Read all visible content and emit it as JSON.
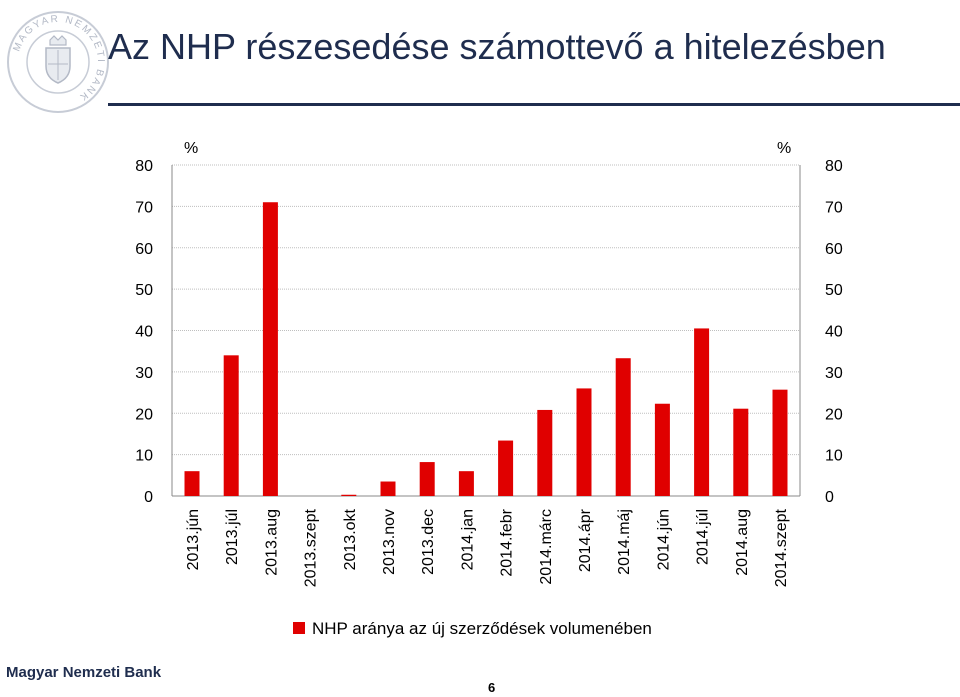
{
  "header": {
    "title": "Az NHP részesedése számottevő a hitelezésben"
  },
  "logo": {
    "text": "MAGYAR NEMZETI BANK",
    "icon": "mnb-seal-icon"
  },
  "footer": {
    "bank_name": "Magyar Nemzeti Bank",
    "page_number": "6"
  },
  "colors": {
    "bar": "#e00000",
    "title": "#1f2d4e"
  },
  "chart_data": {
    "type": "bar",
    "categories": [
      "2013.jún",
      "2013.júl",
      "2013.aug",
      "2013.szept",
      "2013.okt",
      "2013.nov",
      "2013.dec",
      "2014.jan",
      "2014.febr",
      "2014.márc",
      "2014.ápr",
      "2014.máj",
      "2014.jún",
      "2014.júl",
      "2014.aug",
      "2014.szept"
    ],
    "series": [
      {
        "name": "NHP aránya az új szerződések volumenében",
        "values": [
          6,
          34,
          71,
          0,
          0.3,
          3.5,
          8.2,
          6,
          13.4,
          20.8,
          26,
          33.3,
          22.3,
          40.5,
          21.1,
          25.7
        ]
      }
    ],
    "ylim": [
      0,
      80
    ],
    "yticks": [
      0,
      10,
      20,
      30,
      40,
      50,
      60,
      70,
      80
    ],
    "ylabel_left": "%",
    "ylabel_right": "%",
    "grid": true,
    "legend_position": "bottom"
  }
}
